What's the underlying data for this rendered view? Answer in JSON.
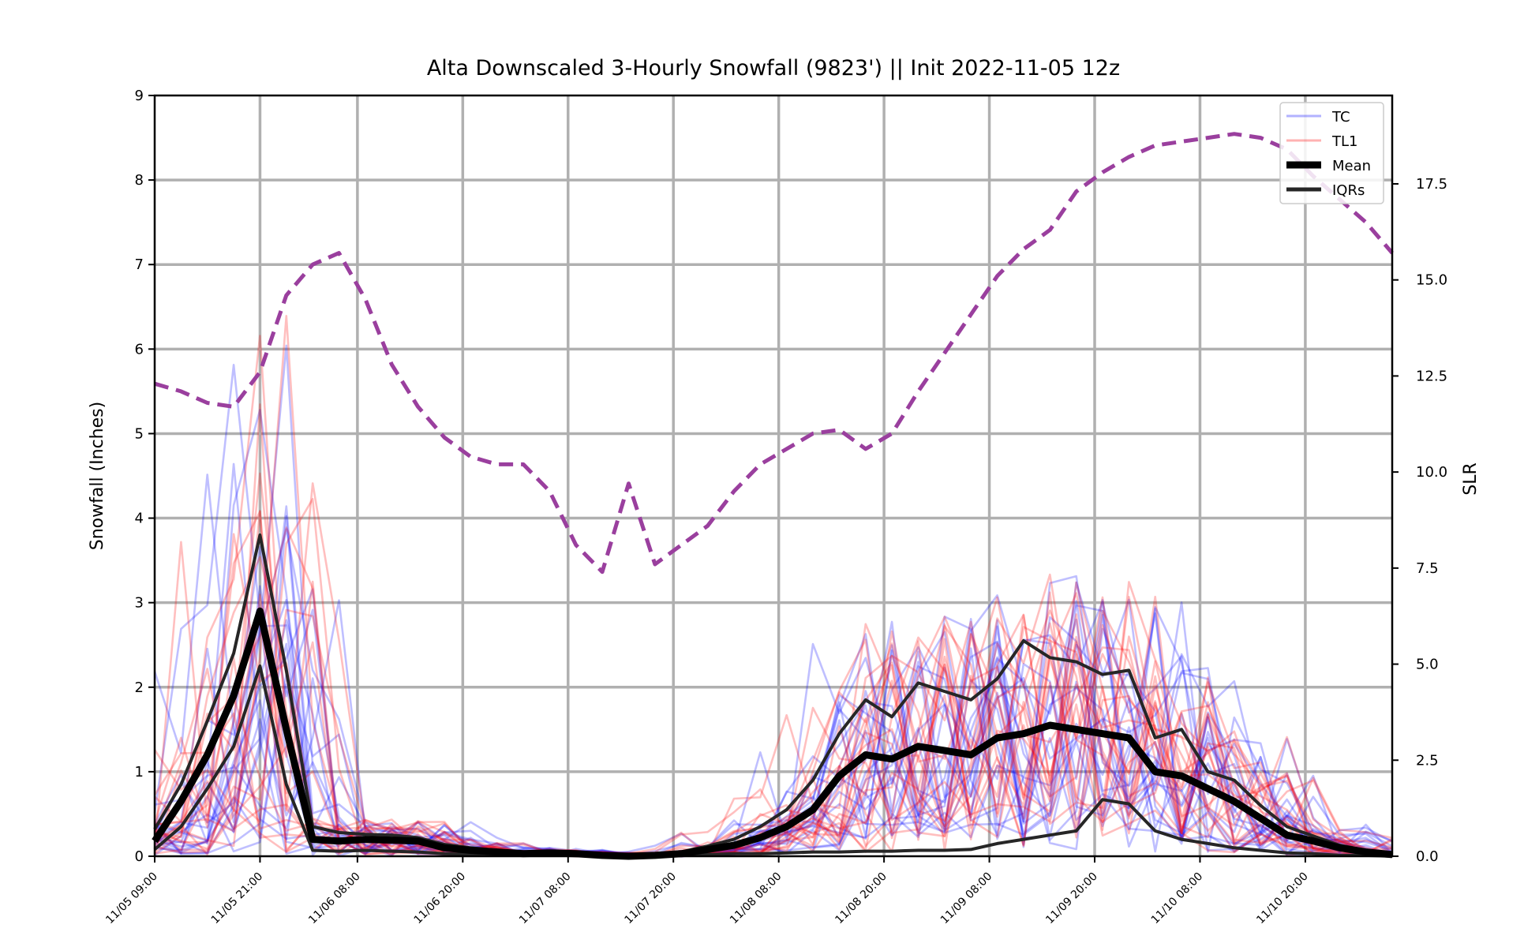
{
  "chart_data": {
    "type": "line",
    "title": "Alta Downscaled 3-Hourly Snowfall (9823') || Init 2022-11-05 12z",
    "ylabel": "Snowfall (Inches)",
    "y2label": "SLR",
    "ylim": [
      0,
      9
    ],
    "y2lim": [
      0,
      19.8
    ],
    "yticks": [
      "0",
      "1",
      "2",
      "3",
      "4",
      "5",
      "6",
      "7",
      "8",
      "9"
    ],
    "y2ticks": [
      "0.0",
      "2.5",
      "5.0",
      "7.5",
      "10.0",
      "12.5",
      "15.0",
      "17.5"
    ],
    "xticks": [
      "11/05 09:00",
      "11/05 21:00",
      "11/06 08:00",
      "11/06 20:00",
      "11/07 08:00",
      "11/07 20:00",
      "11/08 08:00",
      "11/08 20:00",
      "11/09 08:00",
      "11/09 20:00",
      "11/10 08:00",
      "11/10 20:00"
    ],
    "x_range": [
      0,
      47
    ],
    "grid": true,
    "legend": {
      "placement": "top-right",
      "entries": [
        {
          "label": "TC",
          "color": "#6a6aff"
        },
        {
          "label": "TL1",
          "color": "#ff7a7a"
        },
        {
          "label": "Mean",
          "color": "#000000"
        },
        {
          "label": "IQRs",
          "color": "#262626"
        }
      ]
    },
    "colors": {
      "tc": "#0000ff",
      "tl1": "#ff0000",
      "mean": "#000000",
      "iqr": "#262626",
      "slr": "#9a3f9e",
      "grid": "#b0b0b0"
    },
    "mean": [
      0.18,
      0.65,
      1.2,
      1.9,
      2.9,
      1.5,
      0.2,
      0.18,
      0.2,
      0.19,
      0.18,
      0.1,
      0.07,
      0.05,
      0.03,
      0.04,
      0.03,
      0.01,
      0.0,
      0.01,
      0.03,
      0.08,
      0.13,
      0.22,
      0.35,
      0.55,
      0.95,
      1.2,
      1.15,
      1.3,
      1.25,
      1.2,
      1.4,
      1.45,
      1.55,
      1.5,
      1.45,
      1.4,
      1.0,
      0.95,
      0.8,
      0.65,
      0.45,
      0.25,
      0.18,
      0.1,
      0.05,
      0.02
    ],
    "iqr_upper": [
      0.32,
      0.85,
      1.6,
      2.4,
      3.8,
      2.2,
      0.35,
      0.28,
      0.26,
      0.25,
      0.22,
      0.14,
      0.1,
      0.07,
      0.05,
      0.06,
      0.05,
      0.02,
      0.0,
      0.02,
      0.05,
      0.12,
      0.2,
      0.35,
      0.55,
      0.9,
      1.45,
      1.85,
      1.65,
      2.05,
      1.95,
      1.85,
      2.1,
      2.55,
      2.35,
      2.3,
      2.15,
      2.2,
      1.4,
      1.5,
      1.0,
      0.9,
      0.6,
      0.35,
      0.24,
      0.13,
      0.07,
      0.03
    ],
    "iqr_lower": [
      0.08,
      0.35,
      0.8,
      1.3,
      2.25,
      0.85,
      0.07,
      0.06,
      0.07,
      0.06,
      0.05,
      0.03,
      0.02,
      0.01,
      0.01,
      0.01,
      0.01,
      0.0,
      0.0,
      0.0,
      0.01,
      0.02,
      0.03,
      0.03,
      0.04,
      0.05,
      0.05,
      0.06,
      0.06,
      0.07,
      0.07,
      0.08,
      0.15,
      0.2,
      0.25,
      0.3,
      0.67,
      0.62,
      0.3,
      0.2,
      0.15,
      0.1,
      0.07,
      0.04,
      0.03,
      0.01,
      0.01,
      0.0
    ],
    "slr": [
      12.3,
      12.1,
      11.8,
      11.7,
      12.6,
      14.6,
      15.4,
      15.7,
      14.5,
      12.8,
      11.7,
      10.9,
      10.4,
      10.2,
      10.2,
      9.5,
      8.1,
      7.4,
      9.7,
      7.6,
      8.1,
      8.6,
      9.5,
      10.2,
      10.6,
      11.0,
      11.1,
      10.6,
      11.0,
      12.1,
      13.1,
      14.1,
      15.1,
      15.8,
      16.3,
      17.3,
      17.8,
      18.2,
      18.5,
      18.6,
      18.7,
      18.8,
      18.7,
      18.4,
      17.7,
      17.1,
      16.5,
      15.7
    ],
    "ensemble_members": {
      "tc": 20,
      "tl1": 20
    }
  }
}
